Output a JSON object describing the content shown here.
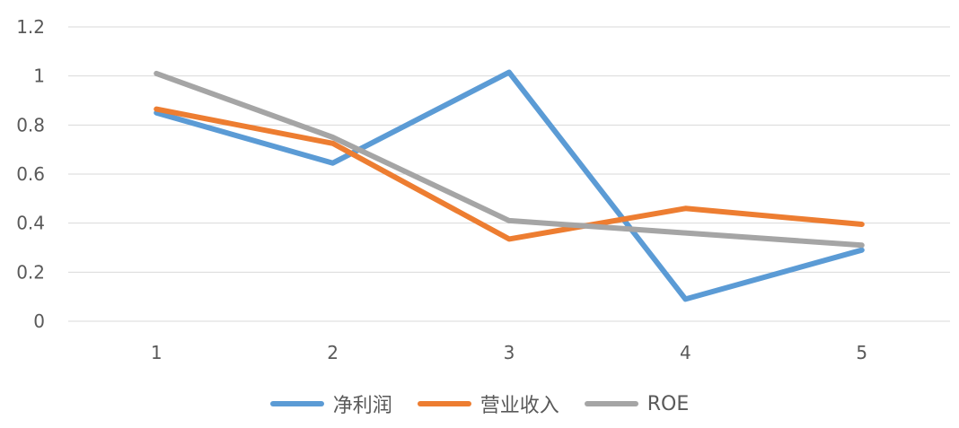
{
  "chart_data": {
    "type": "line",
    "title": "",
    "xlabel": "",
    "ylabel": "",
    "categories": [
      "1",
      "2",
      "3",
      "4",
      "5"
    ],
    "ylim": [
      0,
      1.2
    ],
    "yticks": [
      "0",
      "0.2",
      "0.4",
      "0.6",
      "0.8",
      "1",
      "1.2"
    ],
    "grid": true,
    "legend_position": "bottom",
    "series": [
      {
        "name": "净利润",
        "color": "#5B9BD5",
        "values": [
          0.85,
          0.645,
          1.015,
          0.09,
          0.29
        ]
      },
      {
        "name": "营业收入",
        "color": "#ED7D31",
        "values": [
          0.865,
          0.725,
          0.335,
          0.46,
          0.395
        ]
      },
      {
        "name": "ROE",
        "color": "#A5A5A5",
        "values": [
          1.01,
          0.75,
          0.41,
          0.36,
          0.31
        ]
      }
    ]
  }
}
